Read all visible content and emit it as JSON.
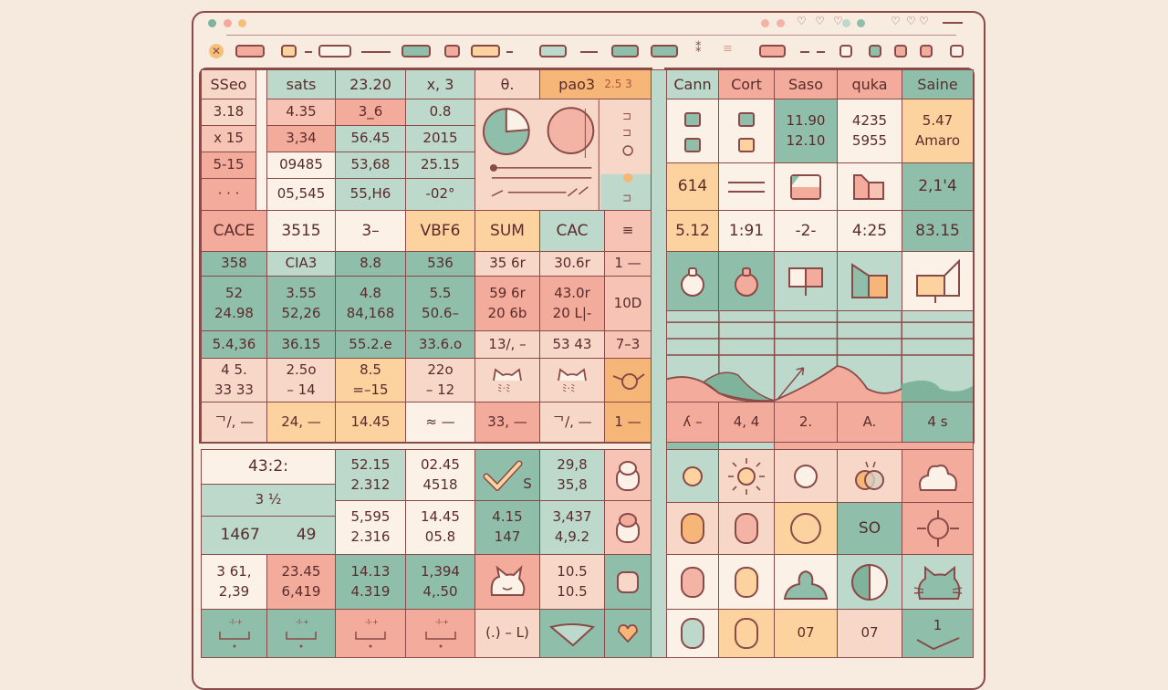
{
  "colors": {
    "teal": "#8fbfab",
    "lteal": "#bcd9cc",
    "salmon": "#f3ab9b",
    "pink": "#f6c3b4",
    "pinklight": "#f7d7c8",
    "peach": "#fcd39e",
    "orange": "#f6b677",
    "cream": "#fbf1e6",
    "border": "#8a4a48"
  },
  "toolbar": {
    "close_icon": "close-icon",
    "menu_icon": "menu-icon"
  },
  "left_table": {
    "headers": [
      "SSeo",
      "sats",
      "23.20",
      "x, 3",
      "θ.",
      "pao3",
      "2.5 3"
    ],
    "rows_top": [
      [
        "3.18",
        "4.35",
        "3_6",
        "0.8"
      ],
      [
        "x 15",
        "3,34",
        "56.45",
        "2015"
      ],
      [
        "5-15",
        "09485",
        "53,68",
        "25.15"
      ],
      [
        "· · ·",
        "05,545",
        "55,H6",
        "-02°"
      ]
    ],
    "row_labels": [
      "CACE",
      "3515",
      "3–",
      "VBF6",
      "SUM",
      "CAC"
    ],
    "rows_mid": [
      [
        "358",
        "CIA3",
        "8.8",
        "536",
        "35 6r",
        "30.6r",
        "1 —"
      ],
      [
        "52\n24.98",
        "3.55\n52,26",
        "4.8\n84,168",
        "5.5\n50.6–",
        "59 6r\n20 6b",
        "43.0r\n20 L|-",
        "10D"
      ],
      [
        "5.4,36",
        "36.15",
        "55.2.e",
        "33.6.o",
        "13/, –",
        "53 43",
        "7–3"
      ],
      [
        "4 5.\n33 33",
        "2.5o\n– 14",
        "8.5\n=–15",
        "22o\n– 12"
      ],
      [
        "ᄀ/, —",
        "24, —",
        "14.45",
        "≈ —",
        "33, —",
        "ᄀ/, —",
        "1 —"
      ]
    ],
    "rows_bottom": {
      "wide": [
        "43:2:",
        "3 ½",
        "1467",
        "49"
      ],
      "pairs": [
        "52.15\n2.312",
        "5,595\n2.316",
        "02.45\n4518",
        "14.45\n05.8",
        "S",
        "4.15\n147",
        "29,8\n35,8",
        "3,437\n4,9.2"
      ],
      "row3": [
        "3 61,\n2,39",
        "23.45\n6,419",
        "14.13\n4.319",
        "1,394\n4,.50",
        "10.5\n10.5"
      ],
      "row4": [
        "(.) – L)"
      ]
    }
  },
  "right_table": {
    "headers": [
      "Cann",
      "Cort",
      "Saso",
      "quka",
      "Saine"
    ],
    "row1": [
      "11.90\n12.10",
      "4235\n5955",
      "5.47\nAmaro"
    ],
    "row2": [
      "614",
      "2,1'4"
    ],
    "row3": [
      "5.12",
      "1:91",
      "-2-",
      "4:25",
      "83.15"
    ],
    "row_chart_labels": [
      "ʎ –",
      "4, 4",
      "2.",
      "A.",
      "4  s"
    ],
    "row_icons_2": [
      "SO"
    ],
    "row_last": [
      "07",
      "07",
      "1"
    ]
  }
}
